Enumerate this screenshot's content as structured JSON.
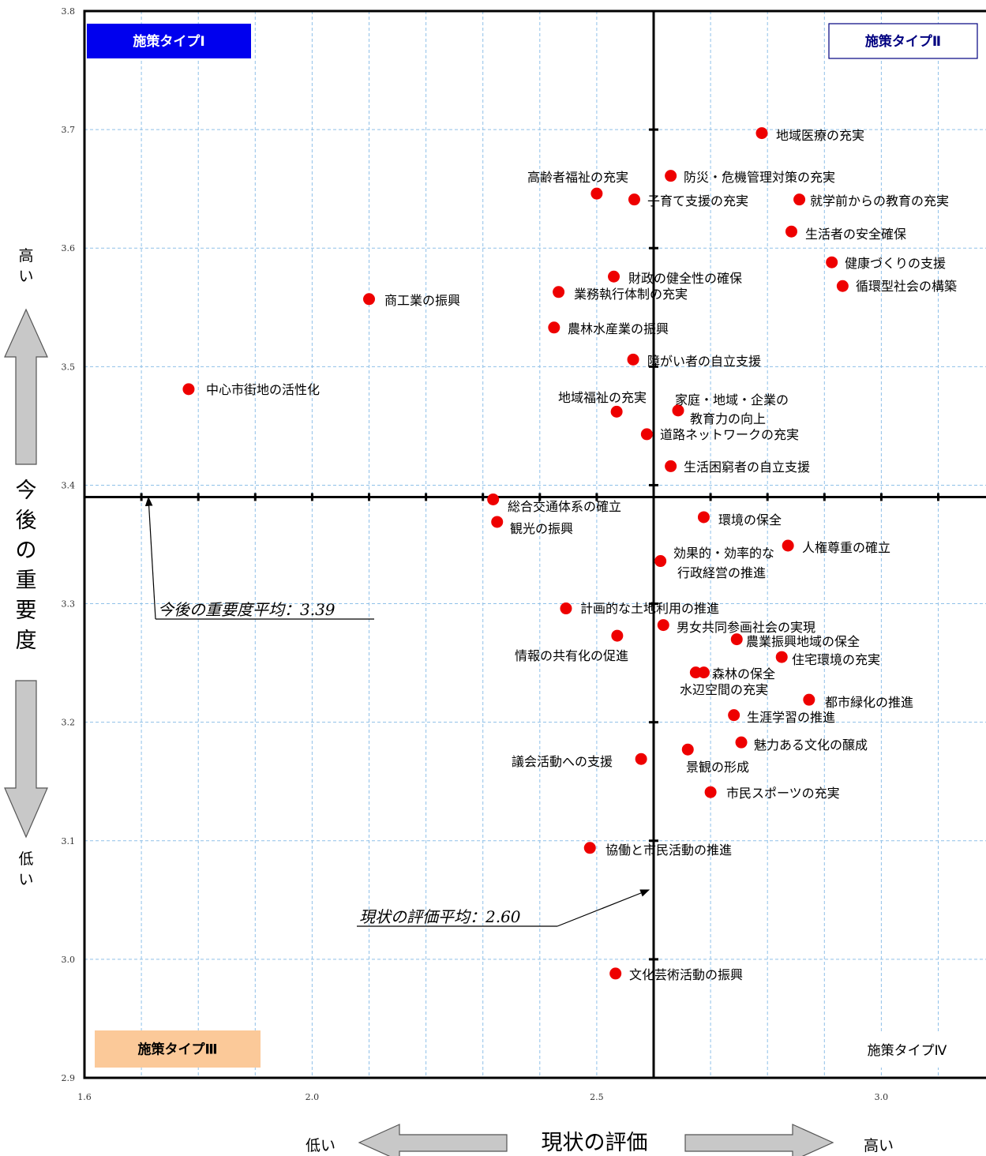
{
  "chart_data": {
    "type": "scatter",
    "xlabel": "現状の評価",
    "ylabel": "今後の重要度",
    "xlim": [
      1.6,
      3.2
    ],
    "ylim": [
      2.9,
      3.8
    ],
    "x_ticks": [
      "1.6",
      "2.0",
      "2.5",
      "3.0"
    ],
    "y_ticks": [
      "2.9",
      "3.0",
      "3.1",
      "3.2",
      "3.3",
      "3.4",
      "3.5",
      "3.6",
      "3.7",
      "3.8"
    ],
    "x_axis_low": "低い",
    "x_axis_high": "高い",
    "y_axis_high": "高い",
    "y_axis_low": "低い",
    "avg_x": 2.6,
    "avg_y": 3.39,
    "avg_x_label": "現状の評価平均：2.60",
    "avg_y_label": "今後の重要度平均：3.39",
    "quadrants": [
      {
        "label": "施策タイプⅠ",
        "bg": "#0000ee",
        "fg": "#ffffff"
      },
      {
        "label": "施策タイプⅡ",
        "bg": "#ffffff",
        "fg": "#000080"
      },
      {
        "label": "施策タイプⅢ",
        "bg": "#fbc999",
        "fg": "#000000"
      },
      {
        "label": "施策タイプⅣ",
        "bg": "#ffffff",
        "fg": "#000000"
      }
    ],
    "point_color": "#ee0000",
    "points": [
      {
        "name": "地域医療の充実",
        "x": 2.79,
        "y": 3.697
      },
      {
        "name": "防災・危機管理対策の充実",
        "x": 2.63,
        "y": 3.661
      },
      {
        "name": "高齢者福祉の充実",
        "x": 2.5,
        "y": 3.646
      },
      {
        "name": "子育て支援の充実",
        "x": 2.566,
        "y": 3.641
      },
      {
        "name": "就学前からの教育の充実",
        "x": 2.856,
        "y": 3.641
      },
      {
        "name": "生活者の安全確保",
        "x": 2.842,
        "y": 3.614
      },
      {
        "name": "健康づくりの支援",
        "x": 2.913,
        "y": 3.588
      },
      {
        "name": "循環型社会の構築",
        "x": 2.932,
        "y": 3.568
      },
      {
        "name": "財政の健全性の確保",
        "x": 2.53,
        "y": 3.576
      },
      {
        "name": "業務執行体制の充実",
        "x": 2.433,
        "y": 3.563
      },
      {
        "name": "商工業の振興",
        "x": 2.1,
        "y": 3.557
      },
      {
        "name": "農林水産業の振興",
        "x": 2.425,
        "y": 3.533
      },
      {
        "name": "障がい者の自立支援",
        "x": 2.564,
        "y": 3.506
      },
      {
        "name": "中心市街地の活性化",
        "x": 1.783,
        "y": 3.481
      },
      {
        "name": "地域福祉の充実",
        "x": 2.535,
        "y": 3.462
      },
      {
        "name": "家庭・地域・企業の教育力の向上",
        "x": 2.643,
        "y": 3.463
      },
      {
        "name": "道路ネットワークの充実",
        "x": 2.588,
        "y": 3.443
      },
      {
        "name": "生活困窮者の自立支援",
        "x": 2.63,
        "y": 3.416
      },
      {
        "name": "総合交通体系の確立",
        "x": 2.318,
        "y": 3.388
      },
      {
        "name": "観光の振興",
        "x": 2.325,
        "y": 3.369
      },
      {
        "name": "環境の保全",
        "x": 2.688,
        "y": 3.373
      },
      {
        "name": "人権尊重の確立",
        "x": 2.836,
        "y": 3.349
      },
      {
        "name": "効果的・効率的な行政経営の推進",
        "x": 2.612,
        "y": 3.336
      },
      {
        "name": "計画的な土地利用の推進",
        "x": 2.446,
        "y": 3.296
      },
      {
        "name": "男女共同参画社会の実現",
        "x": 2.617,
        "y": 3.282
      },
      {
        "name": "情報の共有化の促進",
        "x": 2.536,
        "y": 3.273
      },
      {
        "name": "農業振興地域の保全",
        "x": 2.746,
        "y": 3.27
      },
      {
        "name": "住宅環境の充実",
        "x": 2.825,
        "y": 3.255
      },
      {
        "name": "森林の保全",
        "x": 2.688,
        "y": 3.242
      },
      {
        "name": "水辺空間の充実",
        "x": 2.674,
        "y": 3.242
      },
      {
        "name": "都市緑化の推進",
        "x": 2.873,
        "y": 3.219
      },
      {
        "name": "生涯学習の推進",
        "x": 2.741,
        "y": 3.206
      },
      {
        "name": "魅力ある文化の醸成",
        "x": 2.754,
        "y": 3.183
      },
      {
        "name": "景観の形成",
        "x": 2.66,
        "y": 3.177
      },
      {
        "name": "議会活動への支援",
        "x": 2.578,
        "y": 3.169
      },
      {
        "name": "市民スポーツの充実",
        "x": 2.7,
        "y": 3.141
      },
      {
        "name": "協働と市民活動の推進",
        "x": 2.488,
        "y": 3.094
      },
      {
        "name": "文化芸術活動の振興",
        "x": 2.533,
        "y": 2.988
      }
    ]
  }
}
